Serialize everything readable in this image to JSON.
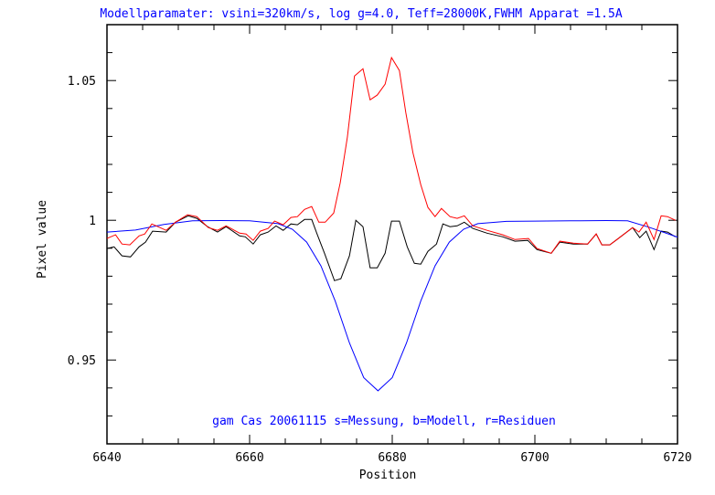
{
  "chart_data": {
    "type": "line",
    "title": "Modellparamater: vsini=320km/s, log g=4.0, Teff=28000K,FWHM Apparat =1.5A",
    "annotation": "gam Cas 20061115 s=Messung, b=Modell, r=Residuen",
    "xlabel": "Position",
    "ylabel": "Pixel value",
    "xlim": [
      6640,
      6720
    ],
    "ylim": [
      0.92,
      1.07
    ],
    "x_ticks": [
      6640,
      6660,
      6680,
      6700,
      6720
    ],
    "x_tick_labels": [
      "6640",
      "6660",
      "6680",
      "6700",
      "6720"
    ],
    "x_minor_step": 5,
    "y_ticks": [
      0.95,
      1.0,
      1.05
    ],
    "y_tick_labels": [
      "0.95",
      "1",
      "1.05"
    ],
    "y_minor_step": 0.01,
    "grid": false,
    "colors": {
      "title": "#0000ff",
      "annotation": "#0000ff",
      "axes": "#000000"
    },
    "series": [
      {
        "key": "s",
        "color": "#000000",
        "x": [
          6640.0,
          6641.0,
          6642.1,
          6643.3,
          6644.5,
          6645.4,
          6646.4,
          6648.3,
          6649.6,
          6651.4,
          6652.6,
          6654.1,
          6655.5,
          6656.7,
          6658.6,
          6659.4,
          6660.5,
          6661.5,
          6662.6,
          6663.7,
          6664.7,
          6665.8,
          6666.7,
          6667.7,
          6668.7,
          6669.5,
          6670.5,
          6671.9,
          6672.8,
          6674.0,
          6674.9,
          6675.9,
          6676.9,
          6677.9,
          6679.0,
          6679.9,
          6681.0,
          6682.1,
          6683.1,
          6684.0,
          6685.0,
          6686.2,
          6687.1,
          6688.1,
          6689.1,
          6690.1,
          6691.3,
          6693.3,
          6695.5,
          6697.2,
          6699.0,
          6700.3,
          6702.3,
          6703.5,
          6705.4,
          6707.4,
          6708.6,
          6709.4,
          6710.5,
          6711.5,
          6713.7,
          6714.7,
          6715.6,
          6716.7,
          6717.7,
          6718.6,
          6719.7
        ],
        "y": [
          0.9899,
          0.9905,
          0.9873,
          0.9869,
          0.9905,
          0.9922,
          0.9961,
          0.9958,
          0.9993,
          1.0016,
          1.0007,
          0.9977,
          0.9958,
          0.9977,
          0.9944,
          0.9941,
          0.9915,
          0.9948,
          0.9958,
          0.998,
          0.9964,
          0.9987,
          0.9984,
          1.0003,
          1.0003,
          0.9948,
          0.9882,
          0.9784,
          0.9791,
          0.9873,
          1.0,
          0.9977,
          0.983,
          0.983,
          0.9882,
          0.9997,
          0.9997,
          0.9905,
          0.9846,
          0.9843,
          0.9889,
          0.9915,
          0.9987,
          0.9977,
          0.998,
          0.9993,
          0.9971,
          0.9954,
          0.9941,
          0.9925,
          0.9928,
          0.9895,
          0.9882,
          0.9922,
          0.9915,
          0.9915,
          0.9951,
          0.9912,
          0.9912,
          0.9931,
          0.9974,
          0.9938,
          0.9961,
          0.9895,
          0.9961,
          0.9958,
          0.9941
        ]
      },
      {
        "key": "b",
        "color": "#0000ff",
        "x": [
          6640,
          6644,
          6648,
          6652,
          6656,
          6660,
          6664,
          6666,
          6668,
          6670,
          6672,
          6674,
          6676,
          6678,
          6680,
          6682,
          6684,
          6686,
          6688,
          6690,
          6692,
          6696,
          6700,
          6705,
          6710,
          6713,
          6716,
          6720
        ],
        "y": [
          0.9958,
          0.9965,
          0.9985,
          0.9998,
          0.9999,
          0.9998,
          0.9988,
          0.9968,
          0.9922,
          0.9837,
          0.9711,
          0.9561,
          0.9437,
          0.939,
          0.9437,
          0.9561,
          0.9711,
          0.9837,
          0.9922,
          0.9968,
          0.9988,
          0.9996,
          0.9997,
          0.9998,
          0.9999,
          0.9998,
          0.9975,
          0.994
        ]
      },
      {
        "key": "r",
        "color": "#ff0000",
        "x": [
          6640.0,
          6641.2,
          6642.1,
          6643.2,
          6644.5,
          6645.3,
          6646.3,
          6648.3,
          6649.6,
          6651.3,
          6652.6,
          6654.2,
          6655.5,
          6656.7,
          6658.6,
          6659.5,
          6660.5,
          6661.5,
          6662.6,
          6663.5,
          6664.7,
          6665.8,
          6666.7,
          6667.7,
          6668.7,
          6669.7,
          6670.6,
          6671.8,
          6672.7,
          6673.7,
          6674.7,
          6675.9,
          6676.9,
          6677.9,
          6679.0,
          6679.9,
          6681.0,
          6681.9,
          6682.9,
          6684.0,
          6685.0,
          6686.0,
          6686.9,
          6688.1,
          6689.1,
          6690.1,
          6691.3,
          6693.3,
          6695.5,
          6697.2,
          6699.1,
          6700.3,
          6702.3,
          6703.5,
          6705.4,
          6707.4,
          6708.6,
          6709.4,
          6710.5,
          6711.5,
          6713.7,
          6714.6,
          6715.6,
          6716.7,
          6717.7,
          6718.6,
          6719.7
        ],
        "y": [
          0.9935,
          0.9948,
          0.9915,
          0.9912,
          0.9944,
          0.9951,
          0.9987,
          0.9964,
          0.9993,
          1.002,
          1.0013,
          0.9974,
          0.9964,
          0.998,
          0.9954,
          0.9951,
          0.9928,
          0.9961,
          0.9971,
          0.9997,
          0.9984,
          1.001,
          1.0013,
          1.0039,
          1.0049,
          0.9993,
          0.9993,
          1.0026,
          1.0134,
          1.0297,
          1.0516,
          1.0542,
          1.0431,
          1.0448,
          1.0487,
          1.0582,
          1.0536,
          1.0386,
          1.0242,
          1.0127,
          1.0046,
          1.0013,
          1.0042,
          1.0013,
          1.0007,
          1.0016,
          0.998,
          0.9964,
          0.9948,
          0.9931,
          0.9935,
          0.9899,
          0.9882,
          0.9925,
          0.9918,
          0.9915,
          0.9951,
          0.9912,
          0.9912,
          0.9931,
          0.9974,
          0.9958,
          0.9993,
          0.9931,
          1.0016,
          1.0013,
          1.0
        ]
      }
    ]
  }
}
